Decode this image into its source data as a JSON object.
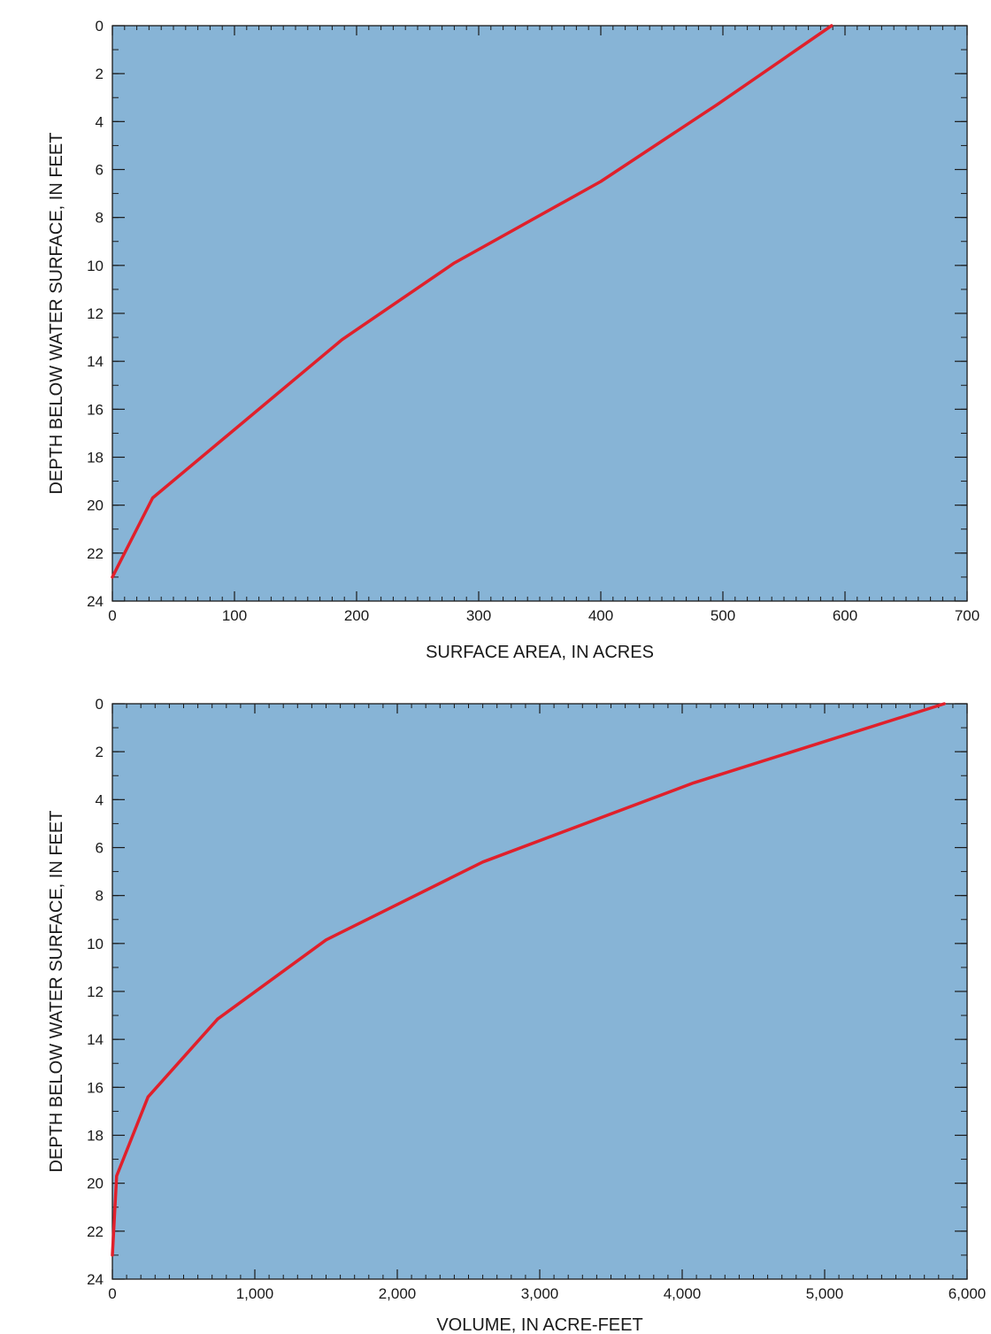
{
  "chart_data": [
    {
      "type": "line",
      "title": "",
      "xlabel": "SURFACE AREA, IN ACRES",
      "ylabel": "DEPTH BELOW WATER SURFACE, IN FEET",
      "xlim": [
        0,
        700
      ],
      "ylim": [
        0,
        24
      ],
      "y_inverted": true,
      "grid": false,
      "x_ticks": [
        {
          "value": 0,
          "label": "0"
        },
        {
          "value": 100,
          "label": "100"
        },
        {
          "value": 200,
          "label": "200"
        },
        {
          "value": 300,
          "label": "300"
        },
        {
          "value": 400,
          "label": "400"
        },
        {
          "value": 500,
          "label": "500"
        },
        {
          "value": 600,
          "label": "600"
        },
        {
          "value": 700,
          "label": "700"
        }
      ],
      "y_ticks": [
        {
          "value": 0,
          "label": "0"
        },
        {
          "value": 2,
          "label": "2"
        },
        {
          "value": 4,
          "label": "4"
        },
        {
          "value": 6,
          "label": "6"
        },
        {
          "value": 8,
          "label": "8"
        },
        {
          "value": 10,
          "label": "10"
        },
        {
          "value": 12,
          "label": "12"
        },
        {
          "value": 14,
          "label": "14"
        },
        {
          "value": 16,
          "label": "16"
        },
        {
          "value": 18,
          "label": "18"
        },
        {
          "value": 20,
          "label": "20"
        },
        {
          "value": 22,
          "label": "22"
        },
        {
          "value": 24,
          "label": "24"
        }
      ],
      "x_minor_step": 10,
      "y_minor_step": 1,
      "background_color": "#87b4d6",
      "series": [
        {
          "color": "#e0202b",
          "points": [
            {
              "x": 589,
              "y": 0
            },
            {
              "x": 495,
              "y": 3.3
            },
            {
              "x": 400,
              "y": 6.5
            },
            {
              "x": 280,
              "y": 9.9
            },
            {
              "x": 188,
              "y": 13.1
            },
            {
              "x": 33,
              "y": 19.7
            },
            {
              "x": 0,
              "y": 23
            }
          ]
        }
      ]
    },
    {
      "type": "line",
      "title": "",
      "xlabel": "VOLUME, IN ACRE-FEET",
      "ylabel": "DEPTH BELOW WATER SURFACE, IN FEET",
      "xlim": [
        0,
        6000
      ],
      "ylim": [
        0,
        24
      ],
      "y_inverted": true,
      "grid": false,
      "x_ticks": [
        {
          "value": 0,
          "label": "0"
        },
        {
          "value": 1000,
          "label": "1,000"
        },
        {
          "value": 2000,
          "label": "2,000"
        },
        {
          "value": 3000,
          "label": "3,000"
        },
        {
          "value": 4000,
          "label": "4,000"
        },
        {
          "value": 5000,
          "label": "5,000"
        },
        {
          "value": 6000,
          "label": "6,000"
        }
      ],
      "y_ticks": [
        {
          "value": 0,
          "label": "0"
        },
        {
          "value": 2,
          "label": "2"
        },
        {
          "value": 4,
          "label": "4"
        },
        {
          "value": 6,
          "label": "6"
        },
        {
          "value": 8,
          "label": "8"
        },
        {
          "value": 10,
          "label": "10"
        },
        {
          "value": 12,
          "label": "12"
        },
        {
          "value": 14,
          "label": "14"
        },
        {
          "value": 16,
          "label": "16"
        },
        {
          "value": 18,
          "label": "18"
        },
        {
          "value": 20,
          "label": "20"
        },
        {
          "value": 22,
          "label": "22"
        },
        {
          "value": 24,
          "label": "24"
        }
      ],
      "x_minor_step": 100,
      "y_minor_step": 1,
      "background_color": "#87b4d6",
      "series": [
        {
          "color": "#e0202b",
          "points": [
            {
              "x": 5840,
              "y": 0
            },
            {
              "x": 4080,
              "y": 3.3
            },
            {
              "x": 2600,
              "y": 6.6
            },
            {
              "x": 1500,
              "y": 9.85
            },
            {
              "x": 740,
              "y": 13.15
            },
            {
              "x": 250,
              "y": 16.4
            },
            {
              "x": 30,
              "y": 19.7
            },
            {
              "x": 0,
              "y": 23
            }
          ]
        }
      ]
    }
  ]
}
